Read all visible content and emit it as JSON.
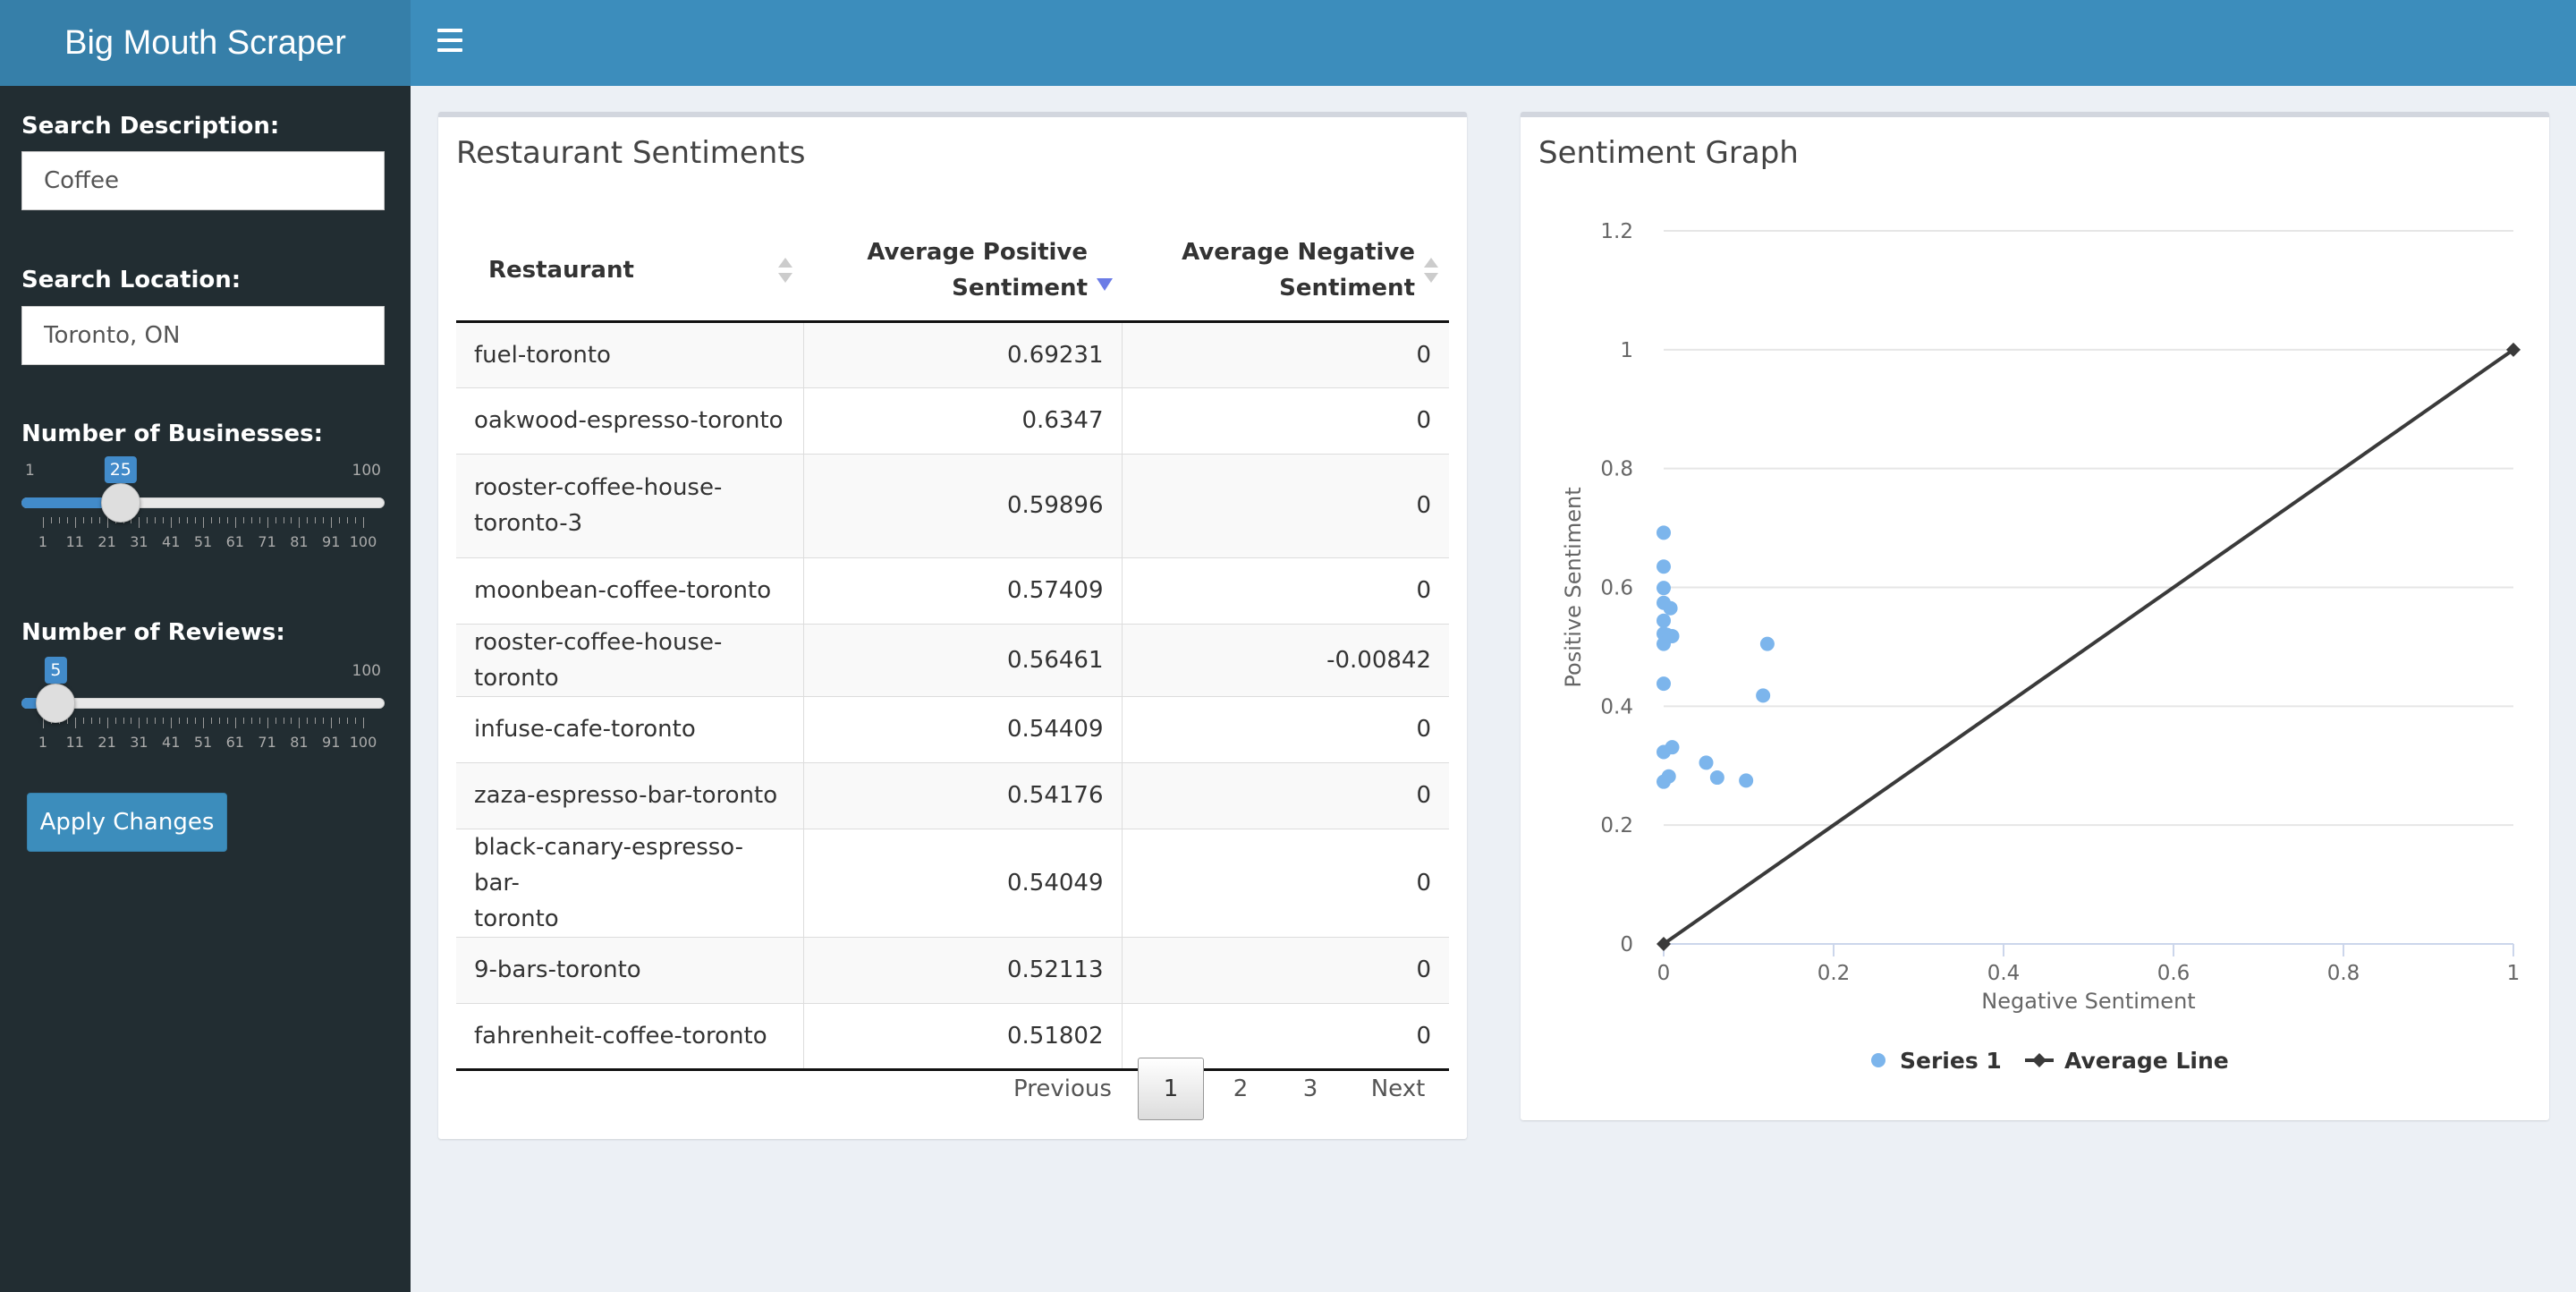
{
  "app": {
    "title": "Big Mouth Scraper"
  },
  "sidebar": {
    "search_description": {
      "label": "Search Description:",
      "value": "Coffee"
    },
    "search_location": {
      "label": "Search Location:",
      "value": "Toronto, ON"
    },
    "businesses": {
      "label": "Number of Businesses:",
      "min": "1",
      "max": "100",
      "value": "25",
      "value_num": 25,
      "tick_labels": [
        "1",
        "11",
        "21",
        "31",
        "41",
        "51",
        "61",
        "71",
        "81",
        "91",
        "100"
      ]
    },
    "reviews": {
      "label": "Number of Reviews:",
      "min": "1",
      "max": "100",
      "value": "5",
      "value_num": 5,
      "tick_labels": [
        "1",
        "11",
        "21",
        "31",
        "41",
        "51",
        "61",
        "71",
        "81",
        "91",
        "100"
      ]
    },
    "apply_label": "Apply Changes"
  },
  "table": {
    "title": "Restaurant Sentiments",
    "columns": [
      "Restaurant",
      "Average Positive Sentiment",
      "Average Negative Sentiment"
    ],
    "rows": [
      [
        "fuel-toronto",
        "0.69231",
        "0"
      ],
      [
        "oakwood-espresso-toronto",
        "0.6347",
        "0"
      ],
      [
        "rooster-coffee-house-toronto-3",
        "0.59896",
        "0"
      ],
      [
        "moonbean-coffee-toronto",
        "0.57409",
        "0"
      ],
      [
        "rooster-coffee-house-toronto",
        "0.56461",
        "-0.00842"
      ],
      [
        "infuse-cafe-toronto",
        "0.54409",
        "0"
      ],
      [
        "zaza-espresso-bar-toronto",
        "0.54176",
        "0"
      ],
      [
        "black-canary-espresso-bar-toronto",
        "0.54049",
        "0"
      ],
      [
        "9-bars-toronto",
        "0.52113",
        "0"
      ],
      [
        "fahrenheit-coffee-toronto",
        "0.51802",
        "0"
      ]
    ],
    "pagination": {
      "previous": "Previous",
      "pages": [
        "1",
        "2",
        "3"
      ],
      "current": "1",
      "next": "Next"
    }
  },
  "chart": {
    "title": "Sentiment Graph"
  },
  "chart_data": {
    "type": "scatter",
    "title": "Sentiment Graph",
    "xlabel": "Negative Sentiment",
    "ylabel": "Positive Sentiment",
    "xlim": [
      0,
      1
    ],
    "ylim": [
      0,
      1.2
    ],
    "x_ticks": [
      "0",
      "0.2",
      "0.4",
      "0.6",
      "0.8",
      "1"
    ],
    "y_ticks": [
      "0",
      "0.2",
      "0.4",
      "0.6",
      "0.8",
      "1",
      "1.2"
    ],
    "legend": [
      "Series 1",
      "Average Line"
    ],
    "legend_position": "bottom",
    "series_color": "#7cb5ec",
    "line_color": "#3a3a3a",
    "series": [
      {
        "name": "Series 1",
        "points": [
          [
            0,
            0.692
          ],
          [
            0,
            0.635
          ],
          [
            0,
            0.599
          ],
          [
            0,
            0.574
          ],
          [
            0.008,
            0.565
          ],
          [
            0,
            0.544
          ],
          [
            0,
            0.522
          ],
          [
            0.004,
            0.52
          ],
          [
            0.01,
            0.518
          ],
          [
            0,
            0.505
          ],
          [
            0.122,
            0.505
          ],
          [
            0,
            0.438
          ],
          [
            0.117,
            0.418
          ],
          [
            0.01,
            0.331
          ],
          [
            0,
            0.323
          ],
          [
            0.05,
            0.305
          ],
          [
            0.006,
            0.282
          ],
          [
            0.063,
            0.28
          ],
          [
            0.097,
            0.275
          ],
          [
            0,
            0.273
          ]
        ]
      },
      {
        "name": "Average Line",
        "points": [
          [
            0,
            0
          ],
          [
            1,
            1
          ]
        ]
      }
    ]
  }
}
